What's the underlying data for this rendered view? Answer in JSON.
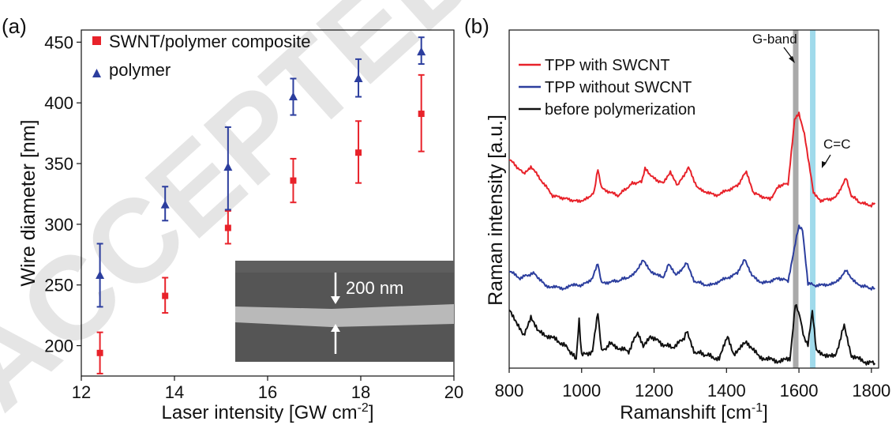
{
  "watermark": "ACCEPTED",
  "colors": {
    "red": "#e8222a",
    "blue": "#2c3e9e",
    "black": "#111111",
    "gband": "#9a9a9a",
    "cc": "#8fd3e8"
  },
  "chart_data": [
    {
      "type": "scatter",
      "panel_label": "(a)",
      "xlabel": "Laser intensity [GW cm",
      "xlabel_sup": "-2",
      "xlabel_end": "]",
      "ylabel": "Wire diameter [nm]",
      "xlim": [
        12,
        20
      ],
      "ylim": [
        175,
        460
      ],
      "xticks": [
        "12",
        "14",
        "16",
        "18",
        "20"
      ],
      "yticks": [
        "200",
        "250",
        "300",
        "350",
        "400",
        "450"
      ],
      "legend_position": "top-left",
      "series": [
        {
          "name": "SWNT/polymer composite",
          "marker": "square",
          "color": "#e8222a",
          "points": [
            {
              "x": 12.4,
              "y": 194,
              "lo": 177,
              "hi": 211
            },
            {
              "x": 13.8,
              "y": 241,
              "lo": 227,
              "hi": 256
            },
            {
              "x": 15.15,
              "y": 297,
              "lo": 284,
              "hi": 311
            },
            {
              "x": 16.55,
              "y": 336,
              "lo": 318,
              "hi": 354
            },
            {
              "x": 17.95,
              "y": 359,
              "lo": 334,
              "hi": 385
            },
            {
              "x": 19.3,
              "y": 391,
              "lo": 360,
              "hi": 423
            }
          ]
        },
        {
          "name": "polymer",
          "marker": "triangle",
          "color": "#2c3e9e",
          "points": [
            {
              "x": 12.4,
              "y": 258,
              "lo": 232,
              "hi": 284
            },
            {
              "x": 13.8,
              "y": 316,
              "lo": 303,
              "hi": 331
            },
            {
              "x": 15.15,
              "y": 347,
              "lo": 312,
              "hi": 380
            },
            {
              "x": 16.55,
              "y": 405,
              "lo": 390,
              "hi": 420
            },
            {
              "x": 17.95,
              "y": 420,
              "lo": 405,
              "hi": 436
            },
            {
              "x": 19.3,
              "y": 442,
              "lo": 432,
              "hi": 454
            }
          ]
        }
      ],
      "inset": {
        "scale_label": "200 nm"
      }
    },
    {
      "type": "line",
      "panel_label": "(b)",
      "xlabel": "Ramanshift [cm",
      "xlabel_sup": "-1",
      "xlabel_end": "]",
      "ylabel": "Raman intensity [a.u.]",
      "xlim": [
        800,
        1820
      ],
      "xticks": [
        "800",
        "1000",
        "1200",
        "1400",
        "1600",
        "1800"
      ],
      "y_ticks_shown": false,
      "legend_position": "top-left",
      "bands": [
        {
          "label": "G-band",
          "x": 1590
        },
        {
          "label": "C=C",
          "x": 1637
        }
      ],
      "series": [
        {
          "name": "TPP with SWCNT",
          "color": "#e8222a",
          "offset": 200,
          "baseline": 105,
          "points": [
            [
              800,
              95
            ],
            [
              840,
              65
            ],
            [
              860,
              80
            ],
            [
              890,
              50
            ],
            [
              920,
              20
            ],
            [
              990,
              8
            ],
            [
              1020,
              15
            ],
            [
              1035,
              30
            ],
            [
              1045,
              75
            ],
            [
              1055,
              35
            ],
            [
              1100,
              20
            ],
            [
              1140,
              45
            ],
            [
              1165,
              48
            ],
            [
              1175,
              75
            ],
            [
              1200,
              55
            ],
            [
              1225,
              45
            ],
            [
              1245,
              70
            ],
            [
              1265,
              40
            ],
            [
              1295,
              78
            ],
            [
              1320,
              35
            ],
            [
              1370,
              20
            ],
            [
              1430,
              40
            ],
            [
              1455,
              70
            ],
            [
              1475,
              25
            ],
            [
              1520,
              12
            ],
            [
              1545,
              40
            ],
            [
              1570,
              45
            ],
            [
              1582,
              130
            ],
            [
              1588,
              175
            ],
            [
              1600,
              190
            ],
            [
              1615,
              145
            ],
            [
              1625,
              100
            ],
            [
              1640,
              25
            ],
            [
              1660,
              10
            ],
            [
              1700,
              15
            ],
            [
              1730,
              55
            ],
            [
              1745,
              20
            ],
            [
              1770,
              5
            ],
            [
              1800,
              0
            ],
            [
              1810,
              5
            ]
          ]
        },
        {
          "name": "TPP without SWCNT",
          "color": "#2c3e9e",
          "offset": 95,
          "baseline": 108,
          "points": [
            [
              800,
              35
            ],
            [
              830,
              20
            ],
            [
              845,
              25
            ],
            [
              870,
              30
            ],
            [
              900,
              5
            ],
            [
              950,
              0
            ],
            [
              985,
              8
            ],
            [
              1000,
              5
            ],
            [
              1030,
              20
            ],
            [
              1045,
              50
            ],
            [
              1055,
              10
            ],
            [
              1100,
              15
            ],
            [
              1140,
              25
            ],
            [
              1170,
              55
            ],
            [
              1190,
              35
            ],
            [
              1225,
              20
            ],
            [
              1240,
              50
            ],
            [
              1260,
              25
            ],
            [
              1290,
              50
            ],
            [
              1310,
              15
            ],
            [
              1350,
              5
            ],
            [
              1400,
              20
            ],
            [
              1430,
              30
            ],
            [
              1450,
              60
            ],
            [
              1470,
              25
            ],
            [
              1500,
              10
            ],
            [
              1545,
              20
            ],
            [
              1570,
              15
            ],
            [
              1590,
              90
            ],
            [
              1600,
              125
            ],
            [
              1610,
              115
            ],
            [
              1625,
              10
            ],
            [
              1650,
              5
            ],
            [
              1700,
              10
            ],
            [
              1730,
              35
            ],
            [
              1760,
              8
            ],
            [
              1800,
              0
            ],
            [
              1810,
              0
            ]
          ]
        },
        {
          "name": "before polymerization",
          "color": "#111111",
          "offset": 0,
          "baseline": 170,
          "points": [
            [
              800,
              70
            ],
            [
              820,
              50
            ],
            [
              840,
              35
            ],
            [
              860,
              60
            ],
            [
              880,
              40
            ],
            [
              930,
              30
            ],
            [
              960,
              20
            ],
            [
              985,
              5
            ],
            [
              993,
              55
            ],
            [
              1000,
              10
            ],
            [
              1030,
              15
            ],
            [
              1045,
              65
            ],
            [
              1055,
              15
            ],
            [
              1080,
              25
            ],
            [
              1100,
              20
            ],
            [
              1130,
              15
            ],
            [
              1155,
              40
            ],
            [
              1170,
              20
            ],
            [
              1190,
              35
            ],
            [
              1220,
              25
            ],
            [
              1250,
              20
            ],
            [
              1280,
              30
            ],
            [
              1290,
              40
            ],
            [
              1310,
              15
            ],
            [
              1350,
              10
            ],
            [
              1380,
              5
            ],
            [
              1403,
              35
            ],
            [
              1420,
              12
            ],
            [
              1440,
              20
            ],
            [
              1455,
              28
            ],
            [
              1490,
              8
            ],
            [
              1540,
              3
            ],
            [
              1575,
              5
            ],
            [
              1590,
              75
            ],
            [
              1605,
              55
            ],
            [
              1615,
              30
            ],
            [
              1625,
              25
            ],
            [
              1637,
              65
            ],
            [
              1648,
              15
            ],
            [
              1680,
              10
            ],
            [
              1700,
              8
            ],
            [
              1725,
              48
            ],
            [
              1745,
              10
            ],
            [
              1780,
              2
            ],
            [
              1810,
              0
            ]
          ]
        }
      ]
    }
  ]
}
